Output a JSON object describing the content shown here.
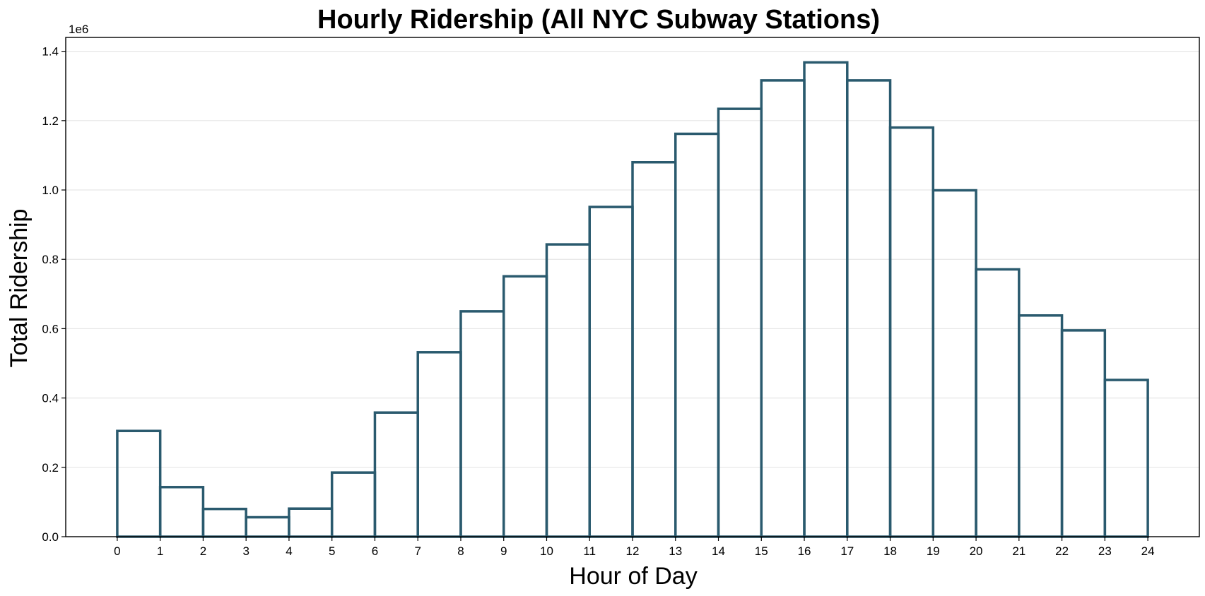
{
  "chart_data": {
    "type": "bar",
    "title": "Hourly Ridership (All NYC Subway Stations)",
    "xlabel": "Hour of Day",
    "ylabel": "Total Ridership",
    "y_offset_label": "1e6",
    "bin_edges": [
      0,
      1,
      2,
      3,
      4,
      5,
      6,
      7,
      8,
      9,
      10,
      11,
      12,
      13,
      14,
      15,
      16,
      17,
      18,
      19,
      20,
      21,
      22,
      23,
      24
    ],
    "values": [
      305000,
      143000,
      80000,
      56000,
      81000,
      185000,
      358000,
      532000,
      650000,
      751000,
      843000,
      951000,
      1080000,
      1162000,
      1234000,
      1316000,
      1368000,
      1316000,
      1180000,
      999000,
      771000,
      638000,
      595000,
      452000
    ],
    "xlim": [
      -1.2,
      25.2
    ],
    "ylim": [
      0,
      1440000
    ],
    "x_ticks": [
      0,
      1,
      2,
      3,
      4,
      5,
      6,
      7,
      8,
      9,
      10,
      11,
      12,
      13,
      14,
      15,
      16,
      17,
      18,
      19,
      20,
      21,
      22,
      23,
      24
    ],
    "y_ticks": [
      0,
      200000,
      400000,
      600000,
      800000,
      1000000,
      1200000,
      1400000
    ],
    "y_tick_labels": [
      "0.0",
      "0.2",
      "0.4",
      "0.6",
      "0.8",
      "1.0",
      "1.2",
      "1.4"
    ],
    "grid": "horizontal",
    "bar_style": "outline",
    "bar_color": "#2a5a6e"
  }
}
